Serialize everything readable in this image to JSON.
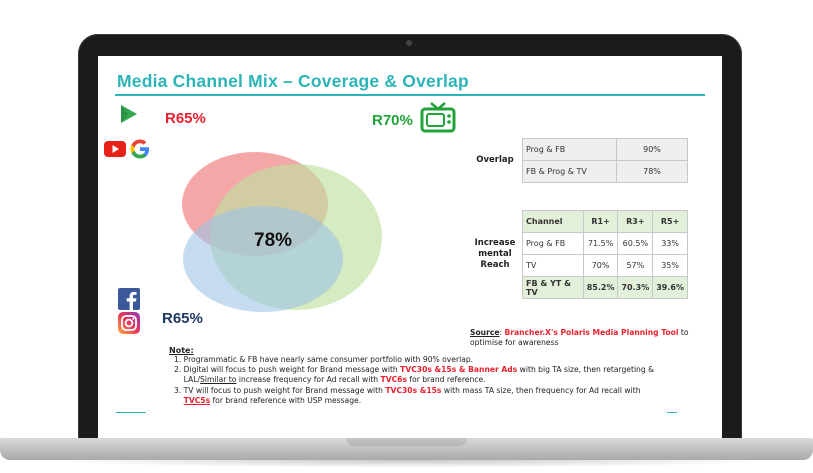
{
  "slide": {
    "title": "Media Channel Mix – Coverage & Overlap",
    "accent_color": "#2cb5b8"
  },
  "venn": {
    "top_left_reach": "R65%",
    "top_right_reach": "R70%",
    "bottom_left_reach": "R65%",
    "overlap_value": "78%",
    "colors": {
      "digital": "#f08a8a",
      "tv": "#bfe0a0",
      "social": "#9cc3e6"
    }
  },
  "icons": {
    "prog": "google-play-icon",
    "youtube": "youtube-icon",
    "google": "google-g-icon",
    "tv": "tv-icon",
    "facebook": "facebook-icon",
    "instagram": "instagram-icon"
  },
  "overlap_table": {
    "row_header": "Overlap",
    "rows": [
      {
        "label": "Prog & FB",
        "value": "90%"
      },
      {
        "label": "FB & Prog & TV",
        "value": "78%"
      }
    ]
  },
  "reach_table": {
    "row_header_line1": "Increase",
    "row_header_line2": "mental",
    "row_header_line3": "Reach",
    "columns": [
      "Channel",
      "R1+",
      "R3+",
      "R5+"
    ],
    "rows": [
      {
        "channel": "Prog & FB",
        "r1": "71.5%",
        "r3": "60.5%",
        "r5": "33%"
      },
      {
        "channel": "TV",
        "r1": "70%",
        "r3": "57%",
        "r5": "35%"
      },
      {
        "channel": "FB & YT & TV",
        "r1": "85.2%",
        "r3": "70.3%",
        "r5": "39.6%"
      }
    ]
  },
  "source": {
    "label": "Source",
    "tool": "Brancher.X's Polaris Media Planning Tool",
    "rest": " to optimise for awareness"
  },
  "notes": {
    "title": "Note",
    "n1": "1. Programmatic & FB have nearly same consumer portfolio with 90% overlap.",
    "n2_a": "2. Digital will focus to push weight for Brand message with ",
    "n2_b": "TVC30s &15s & Banner Ads",
    "n2_c": " with big TA size, then retargeting &",
    "n2_d": "LAL/",
    "n2_e": "Similar to",
    "n2_f": " increase frequency for Ad recall with ",
    "n2_g": "TVC6s",
    "n2_h": " for brand reference.",
    "n3_a": "3. TV will focus to push weight for Brand message with ",
    "n3_b": "TVC30s &15s",
    "n3_c": " with mass TA size, then frequency for Ad recall with",
    "n3_d": "TVC5s",
    "n3_e": " for brand reference with USP message."
  }
}
